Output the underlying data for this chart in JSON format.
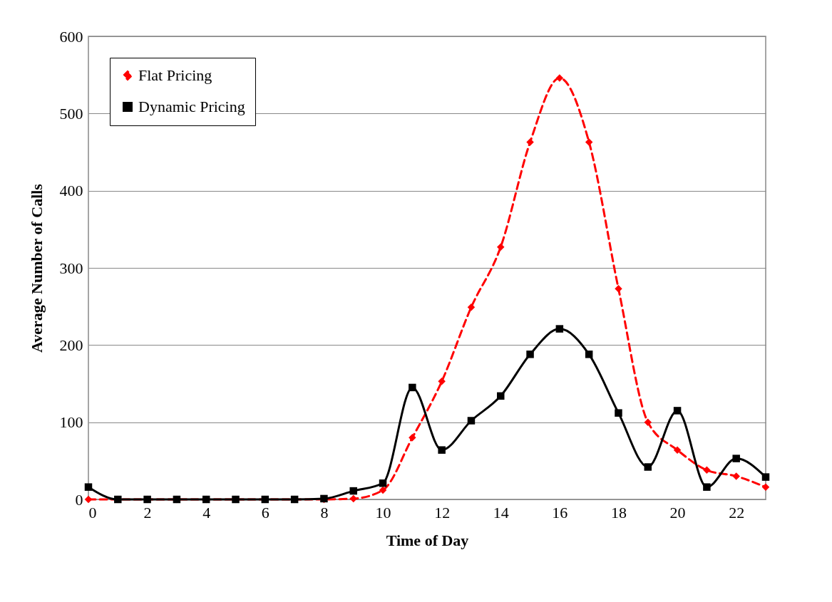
{
  "chart_data": {
    "type": "line",
    "xlabel": "Time of Day",
    "ylabel": "Average Number of Calls",
    "x": [
      0,
      1,
      2,
      3,
      4,
      5,
      6,
      7,
      8,
      9,
      10,
      11,
      12,
      13,
      14,
      15,
      16,
      17,
      18,
      19,
      20,
      21,
      22,
      23
    ],
    "series": [
      {
        "name": "Flat Pricing",
        "color": "#ff0000",
        "line_style": "dashed",
        "marker": "diamond",
        "values": [
          0,
          0,
          0,
          0,
          0,
          0,
          0,
          0,
          0,
          1,
          12,
          80,
          153,
          249,
          327,
          463,
          546,
          463,
          273,
          100,
          64,
          38,
          30,
          16
        ]
      },
      {
        "name": "Dynamic Pricing",
        "color": "#000000",
        "line_style": "solid",
        "marker": "square",
        "values": [
          16,
          0,
          0,
          0,
          0,
          0,
          0,
          0,
          1,
          11,
          21,
          145,
          64,
          102,
          134,
          188,
          221,
          188,
          112,
          42,
          115,
          16,
          53,
          29
        ]
      }
    ],
    "xlim": [
      0,
      23
    ],
    "xticks": [
      0,
      2,
      4,
      6,
      8,
      10,
      12,
      14,
      16,
      18,
      20,
      22
    ],
    "ylim": [
      0,
      600
    ],
    "yticks": [
      0,
      100,
      200,
      300,
      400,
      500,
      600
    ],
    "grid": "y",
    "legend": "top left"
  }
}
